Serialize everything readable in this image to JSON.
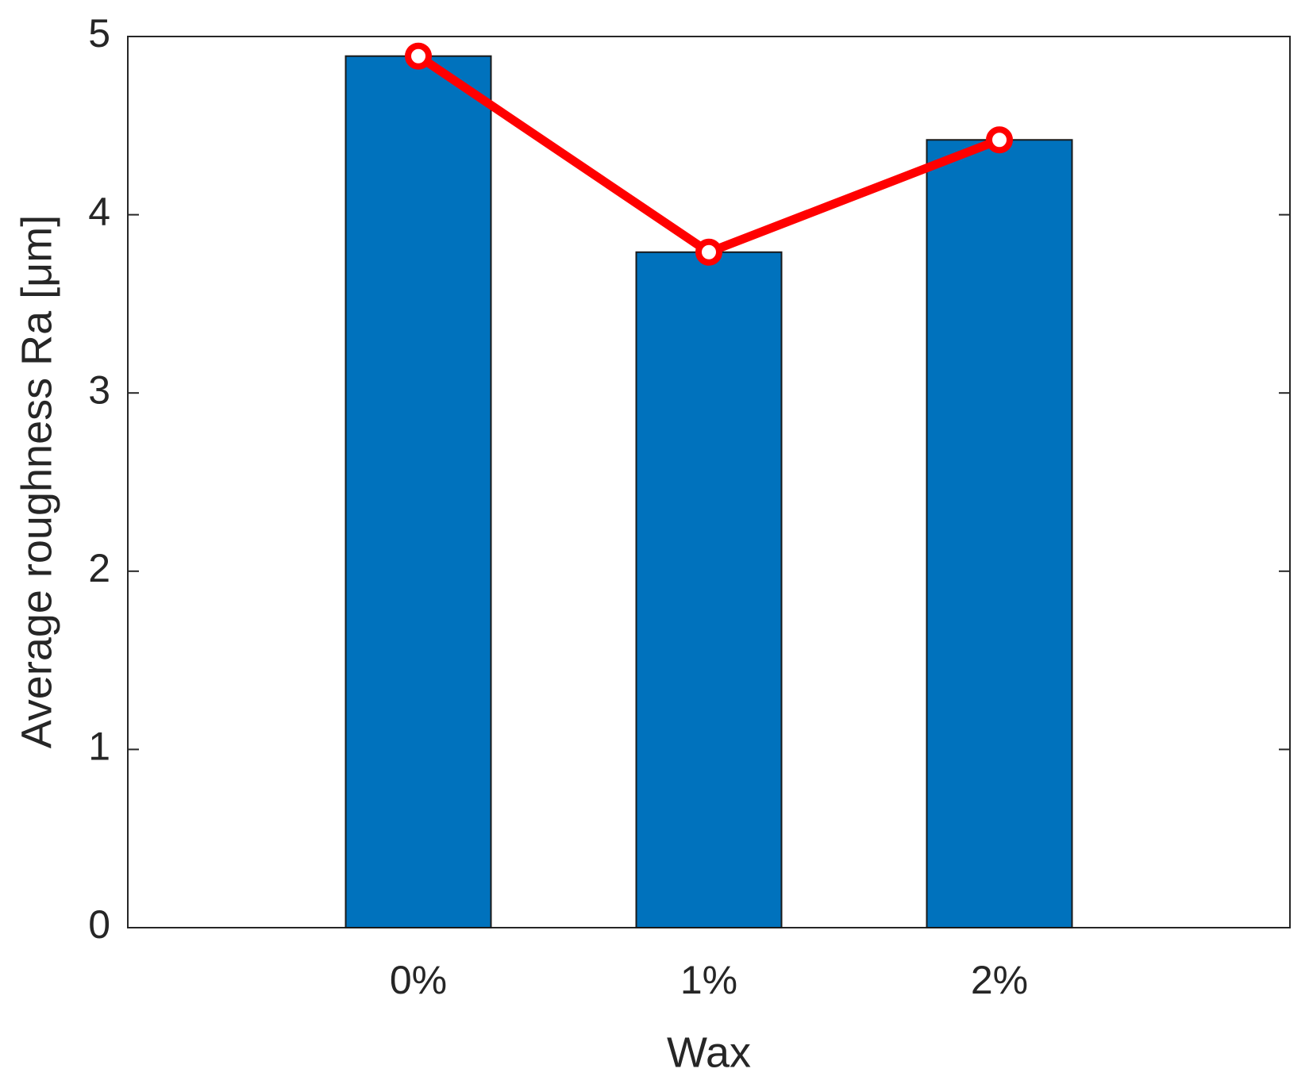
{
  "chart_data": {
    "type": "bar",
    "xlabel": "Wax",
    "ylabel": "Average roughness Ra [μm]",
    "categories": [
      "0%",
      "1%",
      "2%"
    ],
    "series": [
      {
        "type": "bar",
        "color": "#0072bd",
        "values": [
          4.89,
          3.79,
          4.42
        ]
      },
      {
        "type": "line",
        "color": "#ff0000",
        "values": [
          4.89,
          3.79,
          4.42
        ]
      }
    ],
    "ylim": [
      0,
      5
    ],
    "yticks": [
      0,
      1,
      2,
      3,
      4,
      5
    ]
  }
}
